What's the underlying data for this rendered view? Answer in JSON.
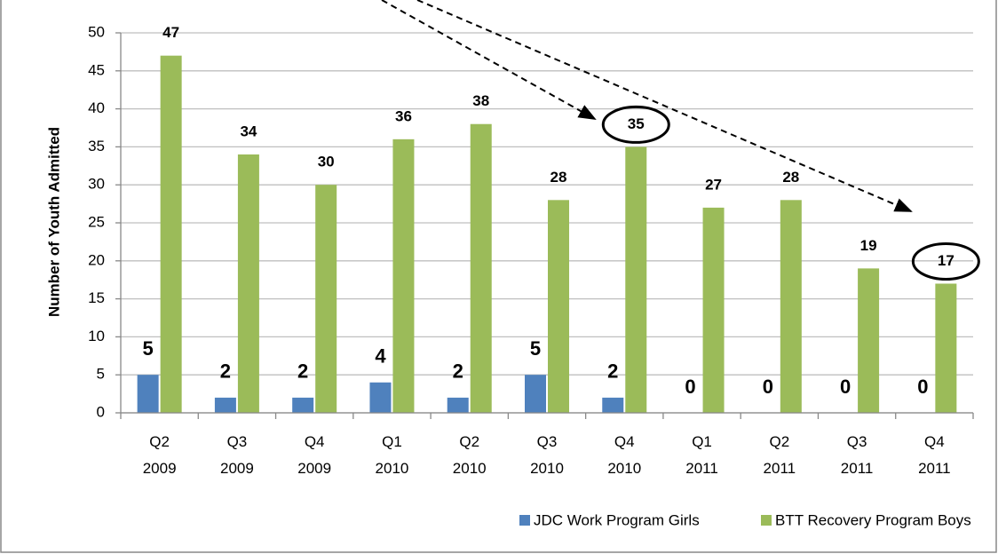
{
  "chart_data": {
    "type": "bar",
    "y_label": "Number of Youth Admitted",
    "categories": [
      "Q2 2009",
      "Q3 2009",
      "Q4 2009",
      "Q1 2010",
      "Q2 2010",
      "Q3 2010",
      "Q4 2010",
      "Q1 2011",
      "Q2 2011",
      "Q3 2011",
      "Q4 2011"
    ],
    "series": [
      {
        "name": "JDC Work Program Girls",
        "color": "#4f81bd",
        "values": [
          5,
          2,
          2,
          4,
          2,
          5,
          2,
          0,
          0,
          0,
          0
        ]
      },
      {
        "name": "BTT Recovery Program Boys",
        "color": "#9bbb59",
        "values": [
          47,
          34,
          30,
          36,
          38,
          28,
          35,
          27,
          28,
          19,
          17
        ]
      }
    ],
    "ylim": [
      0,
      50
    ],
    "yticks": [
      0,
      5,
      10,
      15,
      20,
      25,
      30,
      35,
      40,
      45,
      50
    ],
    "grid": true,
    "legend": "bottom"
  }
}
